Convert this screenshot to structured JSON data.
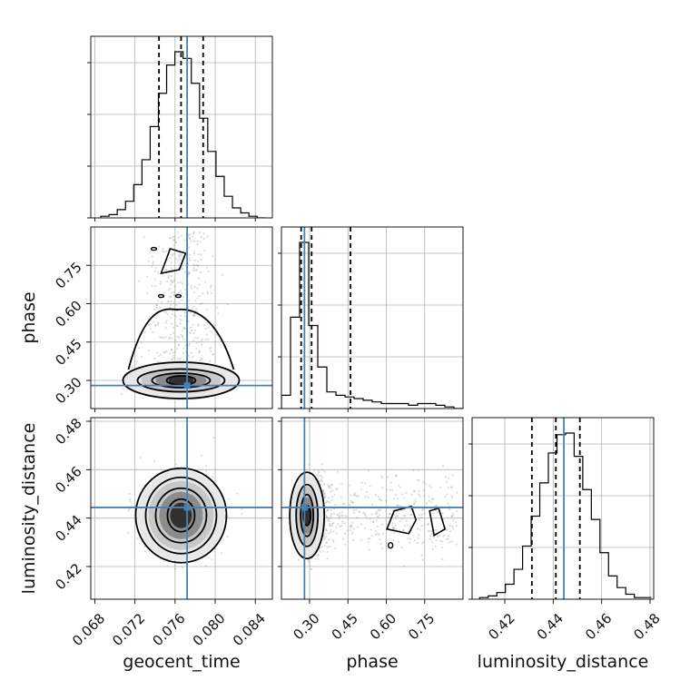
{
  "chart_data": {
    "type": "corner",
    "parameters": [
      "geocent_time",
      "phase",
      "luminosity_distance"
    ],
    "truths": {
      "geocent_time": 0.0772,
      "phase": 0.28,
      "luminosity_distance": 0.4444
    },
    "truth_color": "#4682b4",
    "ranges": {
      "geocent_time": [
        0.0676,
        0.0857
      ],
      "phase": [
        0.19,
        0.9
      ],
      "luminosity_distance": [
        0.4065,
        0.4815
      ]
    },
    "ticks": {
      "geocent_time": [
        "0.068",
        "0.072",
        "0.076",
        "0.080",
        "0.084"
      ],
      "phase": [
        "0.30",
        "0.45",
        "0.60",
        "0.75"
      ],
      "luminosity_distance": [
        "0.42",
        "0.44",
        "0.46",
        "0.48"
      ]
    },
    "grid": true,
    "quantiles": {
      "geocent_time": [
        0.0744,
        0.0766,
        0.0788
      ],
      "phase": [
        0.267,
        0.308,
        0.46
      ],
      "luminosity_distance": [
        0.4312,
        0.4411,
        0.451
      ]
    },
    "histograms": {
      "geocent_time": {
        "edges_start": 0.0686,
        "bin_width": 0.00082,
        "counts": [
          1,
          2,
          5,
          10,
          20,
          35,
          55,
          75,
          92,
          100,
          96,
          81,
          60,
          40,
          25,
          13,
          6,
          3,
          1,
          0
        ]
      },
      "phase": {
        "edges_start": 0.19,
        "bin_width": 0.0355,
        "counts": [
          8,
          55,
          100,
          50,
          25,
          10,
          8,
          7,
          6,
          5,
          4,
          3,
          3,
          3,
          2,
          3,
          3,
          2,
          1,
          0
        ]
      },
      "luminosity_distance": {
        "edges_start": 0.4096,
        "bin_width": 0.00355,
        "counts": [
          1,
          2,
          4,
          9,
          18,
          32,
          50,
          70,
          88,
          99,
          100,
          86,
          66,
          48,
          28,
          14,
          7,
          3,
          1,
          1
        ]
      }
    },
    "axis_labels": {
      "x": [
        "geocent_time",
        "phase",
        "luminosity_distance"
      ],
      "y": [
        "phase",
        "luminosity_distance"
      ]
    }
  }
}
